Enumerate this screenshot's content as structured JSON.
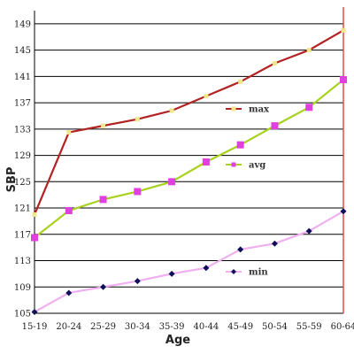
{
  "chart_data": {
    "type": "line",
    "xlabel": "Age",
    "ylabel": "SBP",
    "categories": [
      "15-19",
      "20-24",
      "25-29",
      "30-34",
      "35-39",
      "40-44",
      "45-49",
      "50-54",
      "55-59",
      "60-64"
    ],
    "ylim": [
      105,
      151
    ],
    "yticks": [
      105,
      109,
      113,
      117,
      121,
      125,
      129,
      133,
      137,
      141,
      145,
      149
    ],
    "grid": "horizontal",
    "series": [
      {
        "name": "max",
        "color": "#b22222",
        "marker": "square",
        "marker_color": "#f0e68c",
        "values": [
          120,
          132.5,
          133.5,
          134.5,
          135.8,
          138,
          140.2,
          143,
          145,
          148
        ]
      },
      {
        "name": "avg",
        "color": "#a8d21e",
        "marker": "square",
        "marker_color": "#e040e0",
        "values": [
          116.5,
          120.6,
          122.3,
          123.5,
          125,
          128,
          130.6,
          133.5,
          136.3,
          140.5
        ]
      },
      {
        "name": "min",
        "color": "#f0b0f0",
        "marker": "diamond",
        "marker_color": "#10105a",
        "values": [
          105.2,
          108.1,
          109,
          109.9,
          111,
          111.9,
          114.7,
          115.6,
          117.5,
          120.5
        ]
      }
    ],
    "legend_placement": "inline-right"
  }
}
